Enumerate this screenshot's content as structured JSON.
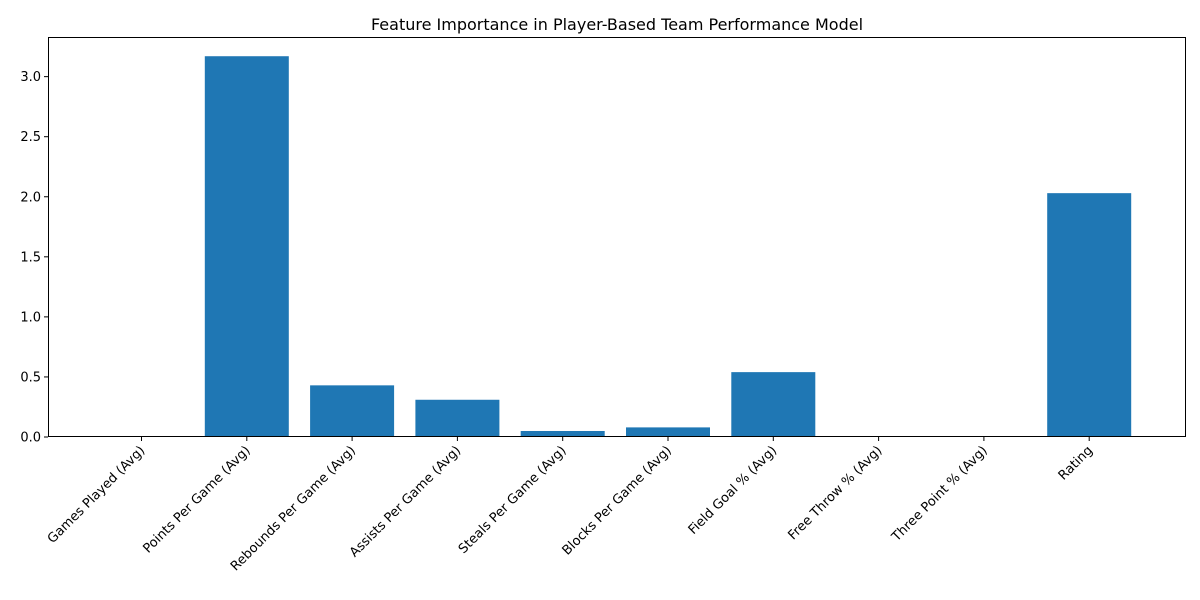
{
  "chart_data": {
    "type": "bar",
    "title": "Feature Importance in Player-Based Team Performance Model",
    "xlabel": "",
    "ylabel": "",
    "categories": [
      "Games Played (Avg)",
      "Points Per Game (Avg)",
      "Rebounds Per Game (Avg)",
      "Assists Per Game (Avg)",
      "Steals Per Game (Avg)",
      "Blocks Per Game (Avg)",
      "Field Goal % (Avg)",
      "Free Throw % (Avg)",
      "Three Point % (Avg)",
      "Rating"
    ],
    "values": [
      0.0,
      3.17,
      0.43,
      0.31,
      0.05,
      0.08,
      0.54,
      0.0,
      0.0,
      2.03
    ],
    "ylim": [
      0,
      3.33
    ],
    "yticks": [
      "0.0",
      "0.5",
      "1.0",
      "1.5",
      "2.0",
      "2.5",
      "3.0"
    ],
    "bar_color": "#1f77b4",
    "grid": false,
    "legend": "none"
  }
}
